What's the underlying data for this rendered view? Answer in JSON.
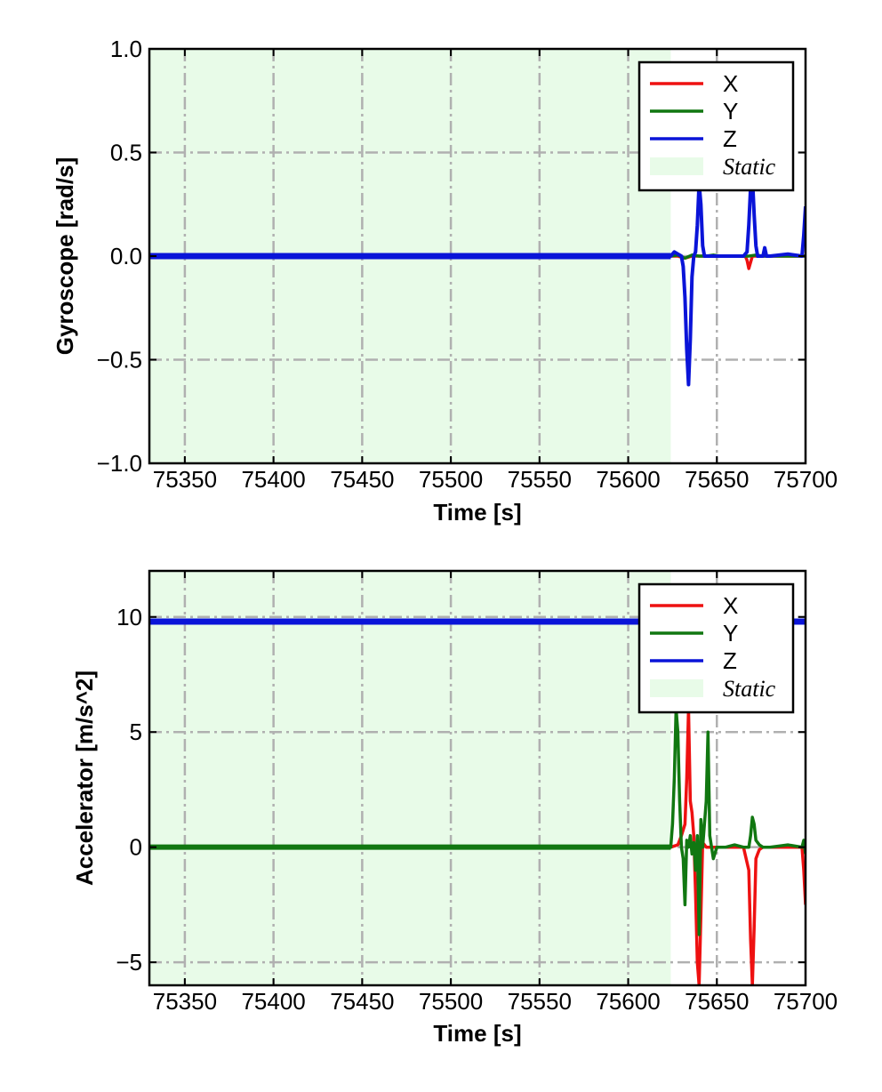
{
  "colors": {
    "x": "#ee1111",
    "y": "#117711",
    "z": "#0a14d8",
    "static_fill": "#e8fbe8",
    "grid": "#b0b0b0"
  },
  "chart_data": [
    {
      "type": "line",
      "xlabel": "Time [s]",
      "ylabel": "Gyroscope [rad/s]",
      "xlim": [
        75330,
        75700
      ],
      "ylim": [
        -1.0,
        1.0
      ],
      "xticks": [
        75350,
        75400,
        75450,
        75500,
        75550,
        75600,
        75650,
        75700
      ],
      "xtick_labels": [
        "75350",
        "75400",
        "75450",
        "75500",
        "75550",
        "75600",
        "75650",
        "75700"
      ],
      "yticks": [
        -1.0,
        -0.5,
        0.0,
        0.5,
        1.0
      ],
      "ytick_labels": [
        "−1.0",
        "−0.5",
        "0.0",
        "0.5",
        "1.0"
      ],
      "grid": true,
      "legend_position": "top-right",
      "static_region": [
        75330,
        75624
      ],
      "legend": [
        "X",
        "Y",
        "Z",
        "Static"
      ],
      "series": [
        {
          "name": "X",
          "x": [
            75330,
            75624,
            75628,
            75632,
            75636,
            75640,
            75644,
            75648,
            75652,
            75656,
            75660,
            75664,
            75666,
            75667,
            75668,
            75669,
            75670,
            75672,
            75676,
            75680,
            75690,
            75698,
            75700
          ],
          "y": [
            0.0,
            0.0,
            0.0,
            -0.01,
            0.0,
            0.0,
            0.0,
            0.0,
            0.0,
            0.0,
            0.0,
            0.0,
            0.0,
            -0.02,
            -0.06,
            -0.03,
            0.0,
            0.0,
            0.0,
            0.0,
            0.0,
            0.0,
            0.0
          ]
        },
        {
          "name": "Y",
          "x": [
            75330,
            75624,
            75628,
            75632,
            75636,
            75640,
            75644,
            75648,
            75652,
            75660,
            75668,
            75672,
            75676,
            75680,
            75690,
            75700
          ],
          "y": [
            0.0,
            0.0,
            0.005,
            -0.01,
            0.005,
            0.0,
            0.0,
            0.005,
            0.0,
            0.0,
            0.0,
            0.005,
            0.0,
            0.0,
            0.0,
            0.0
          ]
        },
        {
          "name": "Z",
          "x": [
            75330,
            75624,
            75626,
            75628,
            75630,
            75631,
            75632,
            75633,
            75634,
            75635,
            75636,
            75637,
            75638,
            75639,
            75640,
            75641,
            75642,
            75643,
            75644,
            75646,
            75650,
            75655,
            75660,
            75665,
            75667,
            75668,
            75669,
            75670,
            75671,
            75672,
            75673,
            75674,
            75676,
            75677,
            75678,
            75680,
            75690,
            75698,
            75699,
            75700
          ],
          "y": [
            0.0,
            0.0,
            0.02,
            0.01,
            0.0,
            -0.05,
            -0.2,
            -0.45,
            -0.62,
            -0.4,
            -0.1,
            0.0,
            0.02,
            0.15,
            0.35,
            0.25,
            0.05,
            0.0,
            0.0,
            0.0,
            0.0,
            0.0,
            0.0,
            0.0,
            0.02,
            0.15,
            0.33,
            0.38,
            0.2,
            0.05,
            0.0,
            0.0,
            0.0,
            0.04,
            0.0,
            0.0,
            0.01,
            0.0,
            0.1,
            0.24
          ]
        }
      ]
    },
    {
      "type": "line",
      "xlabel": "Time [s]",
      "ylabel": "Accelerator [m/s^2]",
      "xlim": [
        75330,
        75700
      ],
      "ylim": [
        -6,
        12
      ],
      "xticks": [
        75350,
        75400,
        75450,
        75500,
        75550,
        75600,
        75650,
        75700
      ],
      "xtick_labels": [
        "75350",
        "75400",
        "75450",
        "75500",
        "75550",
        "75600",
        "75650",
        "75700"
      ],
      "yticks": [
        -5,
        0,
        5,
        10
      ],
      "ytick_labels": [
        "−5",
        "0",
        "5",
        "10"
      ],
      "grid": true,
      "legend_position": "top-right",
      "static_region": [
        75330,
        75624
      ],
      "legend": [
        "X",
        "Y",
        "Z",
        "Static"
      ],
      "series": [
        {
          "name": "X",
          "x": [
            75330,
            75624,
            75628,
            75630,
            75632,
            75633,
            75634,
            75635,
            75636,
            75637,
            75638,
            75639,
            75640,
            75641,
            75642,
            75643,
            75644,
            75646,
            75650,
            75655,
            75660,
            75665,
            75668,
            75669,
            75670,
            75671,
            75672,
            75673,
            75674,
            75676,
            75680,
            75690,
            75698,
            75699,
            75700
          ],
          "y": [
            0.0,
            0.0,
            0.1,
            0.5,
            1.0,
            3.0,
            6.0,
            2.0,
            1.5,
            0.5,
            -2.0,
            -5.0,
            -6.0,
            -3.0,
            0.2,
            0.1,
            0.0,
            0.0,
            0.0,
            0.0,
            0.0,
            0.0,
            -1.0,
            -4.0,
            -6.0,
            -3.5,
            -0.5,
            -0.3,
            -0.1,
            0.0,
            0.0,
            0.0,
            0.0,
            -1.0,
            -2.5
          ]
        },
        {
          "name": "Y",
          "x": [
            75330,
            75624,
            75625,
            75626,
            75627,
            75628,
            75629,
            75630,
            75631,
            75632,
            75633,
            75634,
            75635,
            75636,
            75637,
            75638,
            75639,
            75640,
            75641,
            75642,
            75643,
            75644,
            75645,
            75646,
            75648,
            75650,
            75655,
            75660,
            75665,
            75668,
            75669,
            75670,
            75671,
            75672,
            75673,
            75674,
            75676,
            75680,
            75690,
            75698,
            75699,
            75700
          ],
          "y": [
            0.0,
            0.0,
            1.0,
            3.0,
            6.0,
            5.0,
            2.0,
            0.0,
            -0.5,
            -2.5,
            0.3,
            0.0,
            0.5,
            -0.3,
            0.2,
            -1.0,
            0.5,
            -3.8,
            1.2,
            0.0,
            1.0,
            2.0,
            5.0,
            0.5,
            -0.5,
            0.0,
            0.0,
            0.1,
            0.0,
            0.0,
            0.5,
            1.3,
            1.0,
            0.3,
            0.2,
            0.1,
            0.0,
            0.0,
            0.1,
            0.0,
            0.3,
            -0.3
          ]
        },
        {
          "name": "Z",
          "x": [
            75330,
            75400,
            75500,
            75600,
            75620,
            75650,
            75690,
            75700
          ],
          "y": [
            9.8,
            9.8,
            9.8,
            9.8,
            9.8,
            9.8,
            9.8,
            9.8
          ]
        }
      ]
    }
  ]
}
